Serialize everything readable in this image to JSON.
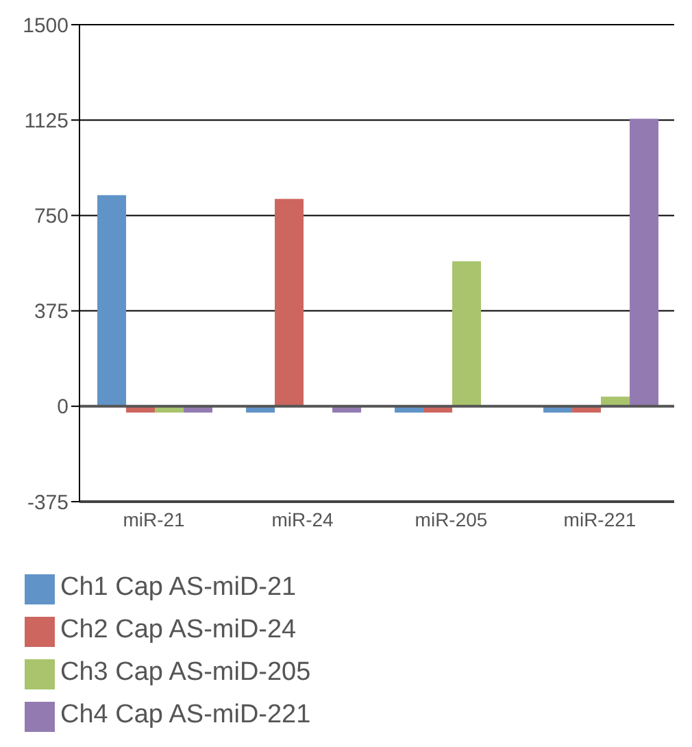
{
  "chart_data": {
    "type": "bar",
    "categories": [
      "miR-21",
      "miR-24",
      "miR-205",
      "miR-221"
    ],
    "series": [
      {
        "name": "Ch1 Cap AS-miD-21",
        "color": "#6094c8",
        "values": [
          830,
          -25,
          -25,
          -25
        ]
      },
      {
        "name": "Ch2 Cap AS-miD-24",
        "color": "#cd665f",
        "values": [
          -25,
          815,
          -25,
          -25
        ]
      },
      {
        "name": "Ch3 Cap AS-miD-205",
        "color": "#a9c46c",
        "values": [
          -25,
          0,
          570,
          38
        ]
      },
      {
        "name": "Ch4 Cap AS-miD-221",
        "color": "#937bb2",
        "values": [
          -25,
          -25,
          0,
          1130
        ]
      }
    ],
    "ylim": [
      -375,
      1500
    ],
    "yticks": [
      -375,
      0,
      375,
      750,
      1125,
      1500
    ],
    "grid": "y",
    "legend": "bottom"
  }
}
